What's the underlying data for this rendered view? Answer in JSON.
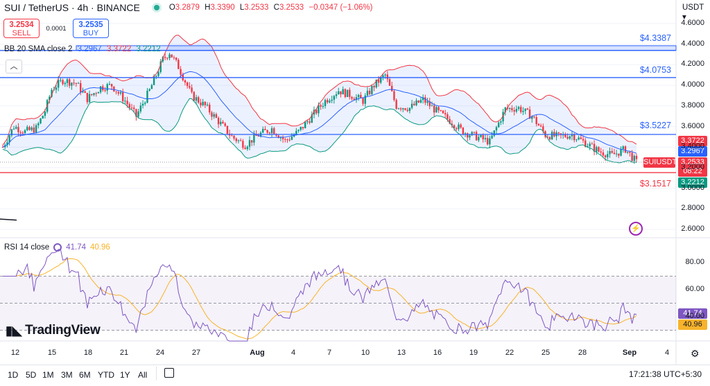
{
  "header": {
    "symbol": "SUI / TetherUS · 4h · BINANCE",
    "ohlc": {
      "o_label": "O",
      "o": "3.2879",
      "h_label": "H",
      "h": "3.3390",
      "l_label": "L",
      "l": "3.2533",
      "c_label": "C",
      "c": "3.2533",
      "change": "−0.0347 (−1.06%)"
    }
  },
  "trade": {
    "sell_price": "3.2534",
    "sell_label": "SELL",
    "spread": "0.0001",
    "buy_price": "3.2535",
    "buy_label": "BUY"
  },
  "indicators": {
    "bb": {
      "name": "BB 20 SMA close 2",
      "basis": "3.2967",
      "upper": "3.3722",
      "lower": "3.2212"
    },
    "rsi": {
      "name": "RSI 14 close",
      "value": "41.74",
      "ma": "40.96"
    }
  },
  "axis": {
    "currency": "USDT",
    "price_ticks": [
      "4.6000",
      "4.4000",
      "4.2000",
      "4.0000",
      "3.8000",
      "3.6000",
      "3.4000",
      "3.2000",
      "3.0000",
      "2.8000",
      "2.6000"
    ],
    "rsi_ticks": [
      "80.00",
      "60.00",
      "40.00"
    ],
    "time_ticks": [
      "12",
      "15",
      "18",
      "21",
      "24",
      "27",
      "Aug",
      "4",
      "7",
      "10",
      "13",
      "16",
      "19",
      "22",
      "25",
      "28",
      "Sep",
      "4"
    ]
  },
  "levels": [
    {
      "label": "$4.3387",
      "color": "#2962ff"
    },
    {
      "label": "$4.0753",
      "color": "#2962ff"
    },
    {
      "label": "$3.5227",
      "color": "#2962ff"
    },
    {
      "label": "$3.1517",
      "color": "#f23645"
    }
  ],
  "tags": {
    "bb_upper": "3.3722",
    "bb_basis": "3.2967",
    "price": "3.2533",
    "countdown": "08:22",
    "symbol_tag": "SUIUSDT",
    "bb_lower": "3.2212",
    "rsi": "41.74",
    "rsi_ma": "40.96"
  },
  "colors": {
    "up": "#089981",
    "down": "#f23645",
    "bb_basis": "#2962ff",
    "bb_upper": "#f23645",
    "bb_lower": "#089981",
    "rsi": "#7e57c2",
    "rsi_ma": "#f7b32b"
  },
  "logo": "TradingView",
  "timeframes": [
    "1D",
    "5D",
    "1M",
    "3M",
    "6M",
    "YTD",
    "1Y",
    "All"
  ],
  "clock": "17:21:38 UTC+5:30",
  "icons": [
    "calendar-icon",
    "gear-icon",
    "lightning-icon",
    "chevron-up-icon"
  ]
}
